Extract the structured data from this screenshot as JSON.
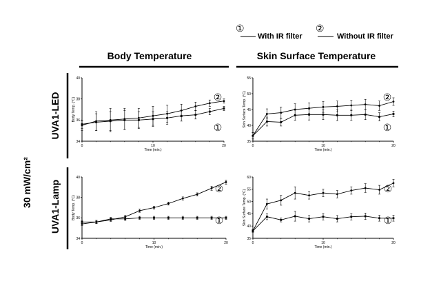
{
  "legend": {
    "with_marker": "①",
    "with_label": "With IR filter",
    "without_marker": "②",
    "without_label": "Without IR filter"
  },
  "headers": {
    "left": "Body Temperature",
    "right": "Skin Surface  Temperature"
  },
  "side_label": "30 mW/cm²",
  "row_labels": [
    "UVA1-LED",
    "UVA1-Lamp"
  ],
  "chart_data": [
    {
      "id": "led-body",
      "type": "line",
      "ylabel": "Body Temp. (°C)",
      "xlabel": "Time (min.)",
      "xlim": [
        0,
        20
      ],
      "ylim": [
        34,
        40
      ],
      "yticks": [
        34,
        36,
        38,
        40
      ],
      "xticks": [
        0,
        10,
        20
      ],
      "tick_labels_y": [
        "34",
        "36",
        "38",
        "40"
      ],
      "tick_labels_x": [
        "0",
        "10",
        "20"
      ],
      "curve_markers": [
        "②",
        "①"
      ],
      "x": [
        0,
        2,
        4,
        6,
        8,
        10,
        12,
        14,
        16,
        18,
        20
      ],
      "series": [
        {
          "values": [
            35.5,
            35.9,
            36.0,
            36.1,
            36.2,
            36.4,
            36.6,
            36.9,
            37.3,
            37.6,
            37.8
          ],
          "err": [
            0.5,
            0.9,
            1.1,
            1.0,
            0.9,
            0.9,
            0.8,
            0.6,
            0.4,
            0.3,
            0.2
          ]
        },
        {
          "values": [
            35.6,
            35.8,
            35.9,
            36.0,
            36.0,
            36.1,
            36.2,
            36.4,
            36.5,
            36.8,
            37.1
          ],
          "err": [
            0.4,
            0.8,
            0.9,
            0.9,
            0.8,
            0.7,
            0.6,
            0.5,
            0.4,
            0.3,
            0.2
          ]
        }
      ]
    },
    {
      "id": "led-skin",
      "type": "line",
      "ylabel": "Skin Surface Temp. (°C)",
      "xlabel": "Time (min.)",
      "xlim": [
        0,
        20
      ],
      "ylim": [
        35,
        55
      ],
      "yticks": [
        35,
        40,
        45,
        50,
        55
      ],
      "xticks": [
        0,
        10,
        20
      ],
      "tick_labels_y": [
        "35",
        "40",
        "45",
        "50",
        "55"
      ],
      "tick_labels_x": [
        "0",
        "10",
        "20"
      ],
      "curve_markers": [
        "②",
        "①"
      ],
      "x": [
        0,
        2,
        4,
        6,
        8,
        10,
        12,
        14,
        16,
        18,
        20
      ],
      "series": [
        {
          "values": [
            36.7,
            43.6,
            44.0,
            45.0,
            45.4,
            45.8,
            46.0,
            46.3,
            46.6,
            46.2,
            47.5
          ],
          "err": [
            1.0,
            1.6,
            1.8,
            1.8,
            1.7,
            1.7,
            1.7,
            1.6,
            1.6,
            1.5,
            1.2
          ]
        },
        {
          "values": [
            36.7,
            41.2,
            41.0,
            43.2,
            43.4,
            43.4,
            43.2,
            43.2,
            43.4,
            42.7,
            43.6
          ],
          "err": [
            1.0,
            1.4,
            1.2,
            1.6,
            1.7,
            1.6,
            1.7,
            1.6,
            1.6,
            1.3,
            0.9
          ]
        }
      ]
    },
    {
      "id": "lamp-body",
      "type": "line",
      "ylabel": "Body Temp. (°C)",
      "xlabel": "Time (min.)",
      "xlim": [
        0,
        20
      ],
      "ylim": [
        34,
        40
      ],
      "yticks": [
        34,
        36,
        38,
        40
      ],
      "xticks": [
        0,
        10,
        20
      ],
      "tick_labels_y": [
        "34",
        "36",
        "38",
        "40"
      ],
      "tick_labels_x": [
        "0",
        "10",
        "20"
      ],
      "curve_markers": [
        "②",
        "①"
      ],
      "x": [
        0,
        2,
        4,
        6,
        8,
        10,
        12,
        14,
        16,
        18,
        20
      ],
      "series": [
        {
          "values": [
            35.4,
            35.6,
            35.8,
            36.1,
            36.7,
            37.0,
            37.4,
            37.9,
            38.3,
            38.9,
            39.5
          ],
          "err": [
            0.15,
            0.15,
            0.15,
            0.15,
            0.15,
            0.15,
            0.15,
            0.15,
            0.15,
            0.2,
            0.2
          ]
        },
        {
          "values": [
            35.6,
            35.6,
            35.9,
            35.9,
            36.0,
            36.0,
            36.0,
            36.0,
            36.0,
            36.0,
            36.0
          ],
          "err": [
            0.15,
            0.15,
            0.15,
            0.15,
            0.15,
            0.15,
            0.15,
            0.15,
            0.15,
            0.15,
            0.15
          ]
        }
      ]
    },
    {
      "id": "lamp-skin",
      "type": "line",
      "ylabel": "Skin Surface Temp. (°C)",
      "xlabel": "Time (min.)",
      "xlim": [
        0,
        20
      ],
      "ylim": [
        35,
        60
      ],
      "yticks": [
        35,
        40,
        45,
        50,
        55,
        60
      ],
      "xticks": [
        0,
        10,
        20
      ],
      "tick_labels_y": [
        "35",
        "40",
        "45",
        "50",
        "55",
        "60"
      ],
      "tick_labels_x": [
        "0",
        "10",
        "20"
      ],
      "curve_markers": [
        "②",
        "①"
      ],
      "x": [
        0,
        2,
        4,
        6,
        8,
        10,
        12,
        14,
        16,
        18,
        20
      ],
      "series": [
        {
          "values": [
            38.0,
            49.0,
            50.5,
            53.5,
            52.5,
            53.5,
            53.0,
            54.5,
            55.5,
            54.8,
            57.5
          ],
          "err": [
            0.5,
            2.0,
            2.0,
            2.5,
            1.5,
            1.5,
            1.5,
            1.5,
            1.8,
            1.8,
            1.5
          ]
        },
        {
          "values": [
            38.0,
            43.8,
            42.5,
            44.0,
            43.0,
            43.8,
            43.0,
            43.8,
            44.0,
            43.2,
            43.2
          ],
          "err": [
            0.5,
            1.2,
            0.8,
            2.0,
            1.3,
            1.3,
            1.3,
            1.3,
            1.3,
            1.2,
            1.2
          ]
        }
      ]
    }
  ]
}
